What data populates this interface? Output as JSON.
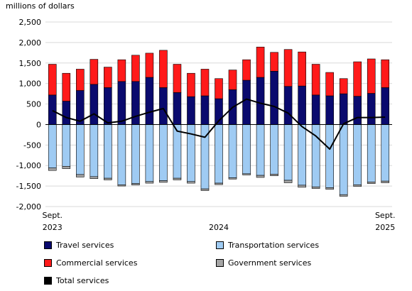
{
  "chart_data": {
    "type": "bar",
    "unit_label": "millions of dollars",
    "categories": [
      "Sept. 2023",
      "Oct. 2023",
      "Nov. 2023",
      "Dec. 2023",
      "Jan. 2024",
      "Feb. 2024",
      "Mar. 2024",
      "Apr. 2024",
      "May 2024",
      "Jun. 2024",
      "Jul. 2024",
      "Aug. 2024",
      "Sep. 2024",
      "Oct. 2024",
      "Nov. 2024",
      "Dec. 2024",
      "Jan. 2025",
      "Feb. 2025",
      "Mar. 2025",
      "Apr. 2025",
      "May 2025",
      "Jun. 2025",
      "Jul. 2025",
      "Aug. 2025",
      "Sep. 2025"
    ],
    "x_tick_labels": [
      {
        "index": 0,
        "lines": [
          "Sept.",
          "2023"
        ]
      },
      {
        "index": 12,
        "lines": [
          "",
          "2024"
        ]
      },
      {
        "index": 24,
        "lines": [
          "Sept.",
          "2025"
        ]
      }
    ],
    "ylim": [
      -2000,
      2500
    ],
    "yticks": [
      -2000,
      -1500,
      -1000,
      -500,
      0,
      500,
      1000,
      1500,
      2000,
      2500
    ],
    "ytick_labels": [
      "-2,000",
      "-1,500",
      "-1,000",
      "-500",
      "0",
      "500",
      "1,000",
      "1,500",
      "2,000",
      "2,500"
    ],
    "grid": "horizontal",
    "series": [
      {
        "name": "Travel services",
        "kind": "bar",
        "color": "#0a0a6e",
        "values": [
          720,
          570,
          830,
          980,
          900,
          1050,
          1050,
          1150,
          900,
          780,
          680,
          700,
          630,
          850,
          1080,
          1150,
          1300,
          930,
          940,
          720,
          700,
          750,
          690,
          760,
          900
        ]
      },
      {
        "name": "Commercial services",
        "kind": "bar",
        "color": "#ff1a1a",
        "values": [
          750,
          680,
          520,
          610,
          500,
          530,
          640,
          590,
          910,
          690,
          570,
          650,
          490,
          480,
          500,
          740,
          460,
          900,
          830,
          750,
          570,
          370,
          840,
          840,
          680
        ]
      },
      {
        "name": "Transportation services",
        "kind": "bar",
        "color": "#9fcbf3",
        "values": [
          -1060,
          -1020,
          -1220,
          -1270,
          -1310,
          -1470,
          -1440,
          -1390,
          -1370,
          -1310,
          -1390,
          -1570,
          -1430,
          -1300,
          -1200,
          -1240,
          -1210,
          -1360,
          -1480,
          -1520,
          -1540,
          -1710,
          -1470,
          -1400,
          -1380
        ]
      },
      {
        "name": "Government services",
        "kind": "bar",
        "color": "#a6a6a6",
        "values": [
          -60,
          -55,
          -60,
          -50,
          -40,
          -30,
          -35,
          -40,
          -40,
          -40,
          -40,
          -40,
          -35,
          -30,
          -30,
          -50,
          -40,
          -60,
          -50,
          -40,
          -40,
          -40,
          -40,
          -40,
          -40
        ]
      },
      {
        "name": "Total services",
        "kind": "line",
        "color": "#000000",
        "values": [
          340,
          170,
          80,
          260,
          40,
          80,
          200,
          300,
          390,
          -160,
          -230,
          -310,
          90,
          420,
          620,
          520,
          440,
          280,
          -50,
          -280,
          -600,
          20,
          170,
          170,
          180
        ]
      }
    ]
  }
}
